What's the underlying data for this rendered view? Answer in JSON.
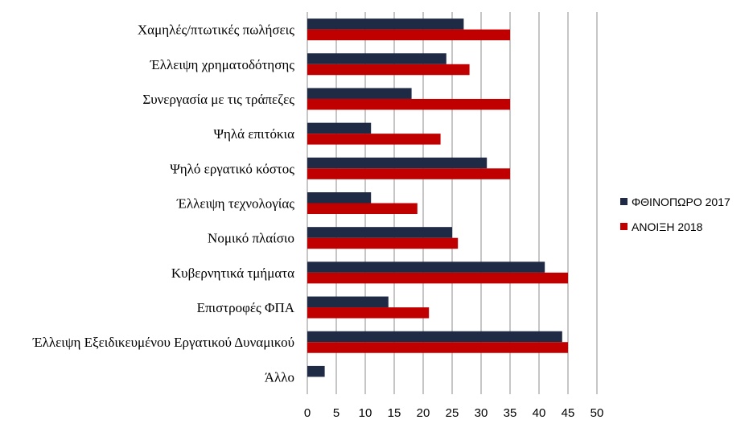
{
  "chart_data": {
    "type": "bar",
    "orientation": "horizontal",
    "categories": [
      "Χαμηλές/πτωτικές πωλήσεις",
      "Έλλειψη χρηματοδότησης",
      "Συνεργασία με τις τράπεζες",
      "Ψηλά επιτόκια",
      "Ψηλό εργατικό κόστος",
      "Έλλειψη τεχνολογίας",
      "Νομικό πλαίσιο",
      "Κυβερνητικά τμήματα",
      "Επιστροφές ΦΠΑ",
      "Έλλειψη Εξειδικευμένου Εργατικού Δυναμικού",
      "Άλλο"
    ],
    "series": [
      {
        "name": "ΦΘΙΝΟΠΩΡΟ 2017",
        "color": "#1f2a44",
        "values": [
          27,
          24,
          18,
          11,
          31,
          11,
          25,
          41,
          14,
          44,
          3
        ]
      },
      {
        "name": "ΑΝΟΙΞΗ 2018",
        "color": "#c00000",
        "values": [
          35,
          28,
          35,
          23,
          35,
          19,
          26,
          45,
          21,
          45,
          0
        ]
      }
    ],
    "xlim": [
      0,
      50
    ],
    "xticks": [
      "0",
      "5",
      "10",
      "15",
      "20",
      "25",
      "30",
      "35",
      "40",
      "45",
      "50"
    ],
    "grid": "vertical",
    "legend_position": "right"
  }
}
